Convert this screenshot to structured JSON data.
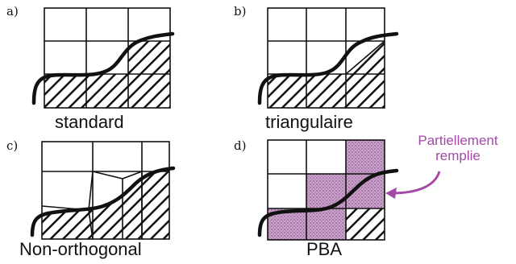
{
  "panels": {
    "a": {
      "letter": "a)",
      "caption": "standard"
    },
    "b": {
      "letter": "b)",
      "caption": "triangulaire"
    },
    "c": {
      "letter": "c)",
      "caption": "Non-orthogonal"
    },
    "d": {
      "letter": "d)",
      "caption": "PBA"
    }
  },
  "annotation": {
    "text_line1": "Partiellement",
    "text_line2": "remplie"
  },
  "colors": {
    "hatch": "#111111",
    "fill_partial": "#c9a3c9",
    "fill_partial_dots": "#7b3b7f",
    "annotation": "#a24aa6"
  }
}
